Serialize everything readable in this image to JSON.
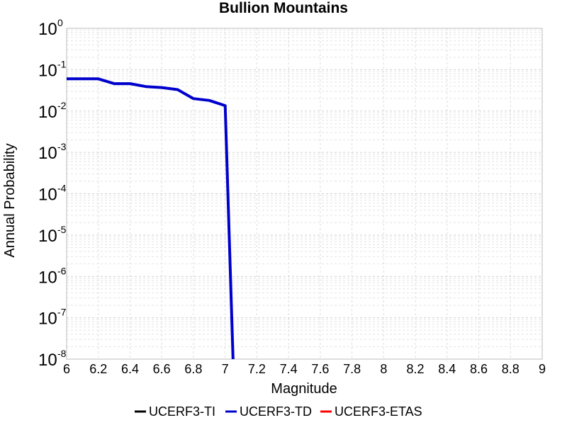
{
  "chart_data": {
    "type": "line",
    "title": "Bullion Mountains",
    "xlabel": "Magnitude",
    "ylabel": "Annual Probability",
    "xlim": [
      6,
      9
    ],
    "ylim": [
      1e-08,
      1
    ],
    "yscale": "log",
    "grid": true,
    "legend_position": "bottom",
    "x_ticks": [
      "6",
      "6.2",
      "6.4",
      "6.6",
      "6.8",
      "7",
      "7.2",
      "7.4",
      "7.6",
      "7.8",
      "8",
      "8.2",
      "8.4",
      "8.6",
      "8.8",
      "9"
    ],
    "y_ticks": [
      {
        "base": "10",
        "exp": "0"
      },
      {
        "base": "10",
        "exp": "-1"
      },
      {
        "base": "10",
        "exp": "-2"
      },
      {
        "base": "10",
        "exp": "-3"
      },
      {
        "base": "10",
        "exp": "-4"
      },
      {
        "base": "10",
        "exp": "-5"
      },
      {
        "base": "10",
        "exp": "-6"
      },
      {
        "base": "10",
        "exp": "-7"
      },
      {
        "base": "10",
        "exp": "-8"
      }
    ],
    "series": [
      {
        "name": "UCERF3-TI",
        "color": "#000000",
        "x": [],
        "y": []
      },
      {
        "name": "UCERF3-TD",
        "color": "#0000cc",
        "x": [
          6.0,
          6.1,
          6.2,
          6.3,
          6.4,
          6.5,
          6.6,
          6.7,
          6.8,
          6.9,
          7.0,
          7.05
        ],
        "y": [
          0.06,
          0.06,
          0.06,
          0.046,
          0.046,
          0.039,
          0.037,
          0.033,
          0.02,
          0.018,
          0.0135,
          1e-08
        ]
      },
      {
        "name": "UCERF3-ETAS",
        "color": "#ff0000",
        "x": [],
        "y": []
      }
    ]
  }
}
